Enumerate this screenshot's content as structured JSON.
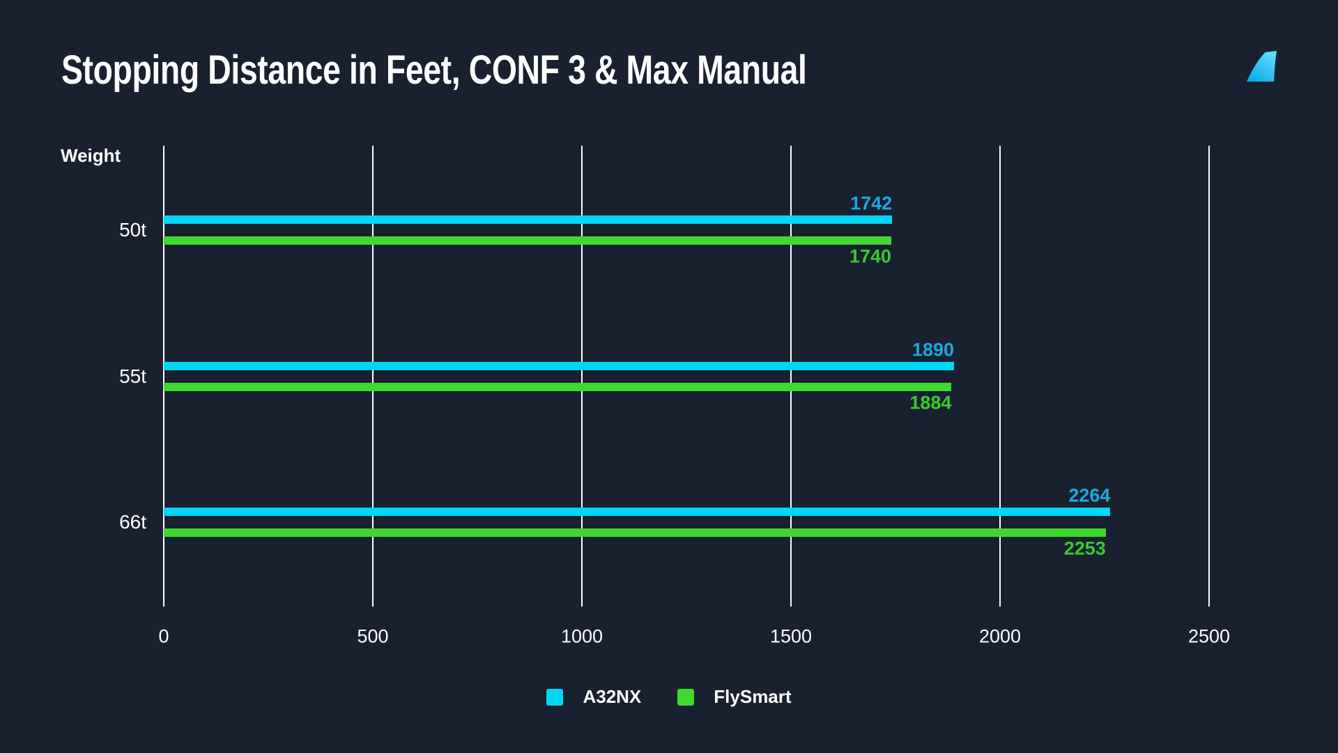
{
  "header": {
    "title": "Stopping Distance in Feet, CONF 3 & Max Manual",
    "logo": "flybywire-tail-fin-icon"
  },
  "chart_data": {
    "type": "bar",
    "orientation": "horizontal",
    "title": "Stopping Distance in Feet, CONF 3 & Max Manual",
    "ylabel": "Weight",
    "xlabel": "",
    "categories": [
      "50t",
      "55t",
      "66t"
    ],
    "series": [
      {
        "name": "A32NX",
        "color": "#00d7f5",
        "label_color": "#1ba9dc",
        "values": [
          1742,
          1890,
          2264
        ]
      },
      {
        "name": "FlySmart",
        "color": "#40d92f",
        "label_color": "#38cc2a",
        "values": [
          1740,
          1884,
          2253
        ]
      }
    ],
    "x_ticks": [
      0,
      500,
      1000,
      1500,
      2000,
      2500
    ],
    "xlim": [
      0,
      2500
    ],
    "grid": "vertical-only",
    "legend_position": "bottom",
    "value_labels": "at-bar-end"
  },
  "colors": {
    "background": "#192030",
    "gridline": "#ffffff",
    "text": "#ffffff",
    "logo_gradient_top": "#5fdeff",
    "logo_gradient_bottom": "#09a8e2"
  }
}
